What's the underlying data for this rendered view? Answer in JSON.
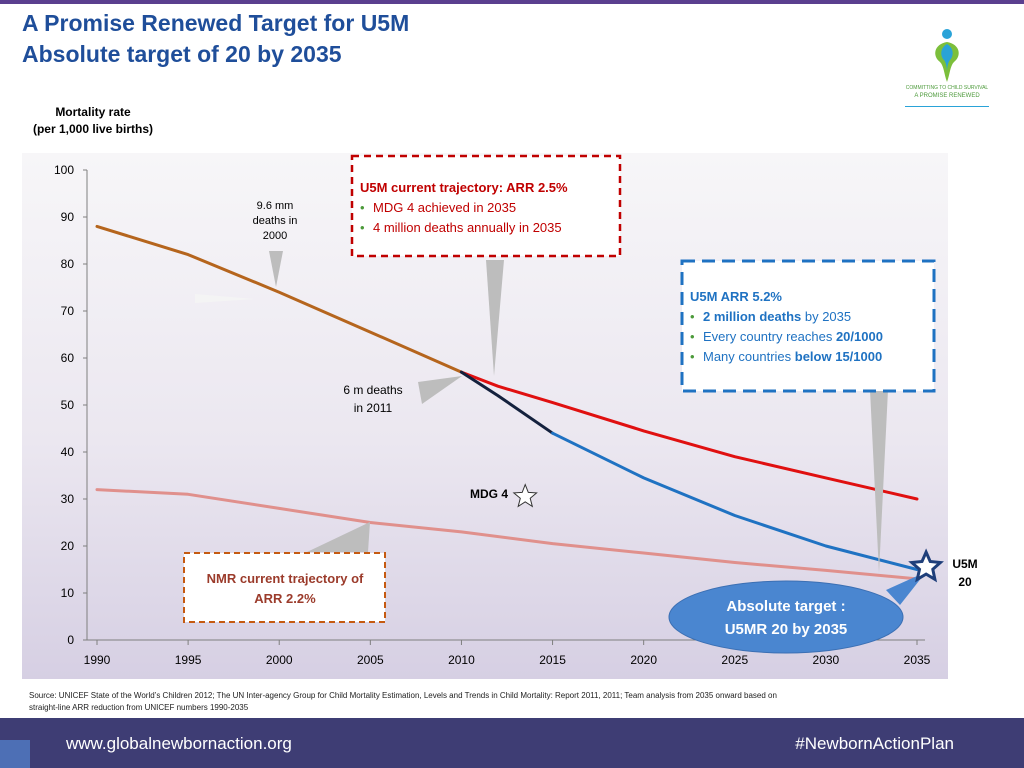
{
  "header": {
    "title_line1": "A Promise Renewed Target for U5M",
    "title_line2": "Absolute target of 20 by 2035"
  },
  "logo": {
    "line1": "COMMITTING TO CHILD SURVIVAL",
    "line2": "A PROMISE RENEWED"
  },
  "y_axis_label": {
    "line1": "Mortality rate",
    "line2": "(per 1,000 live births)"
  },
  "chart_data": {
    "type": "line",
    "ylim": [
      0,
      100
    ],
    "xlim": [
      1990,
      2035
    ],
    "yticks": [
      0,
      10,
      20,
      30,
      40,
      50,
      60,
      70,
      80,
      90,
      100
    ],
    "xticks": [
      1990,
      1995,
      2000,
      2005,
      2010,
      2015,
      2020,
      2025,
      2030,
      2035
    ],
    "grid": false,
    "series": [
      {
        "key": "historical",
        "color": "#b5651d",
        "width": 3,
        "points": [
          [
            1990,
            88
          ],
          [
            1995,
            82
          ],
          [
            2000,
            74
          ],
          [
            2005,
            65.5
          ],
          [
            2010,
            57
          ]
        ]
      },
      {
        "key": "u5m_current",
        "color": "#e01010",
        "width": 3,
        "points": [
          [
            2010,
            57
          ],
          [
            2012,
            54
          ],
          [
            2015,
            50.5
          ],
          [
            2020,
            44.5
          ],
          [
            2025,
            39
          ],
          [
            2030,
            34.5
          ],
          [
            2035,
            30
          ]
        ]
      },
      {
        "key": "bridge",
        "color": "#14213d",
        "width": 3,
        "points": [
          [
            2010,
            57
          ],
          [
            2012,
            52
          ],
          [
            2015,
            44
          ]
        ]
      },
      {
        "key": "u5m_arr52",
        "color": "#1f72c2",
        "width": 3,
        "points": [
          [
            2015,
            44
          ],
          [
            2020,
            34.5
          ],
          [
            2025,
            26.5
          ],
          [
            2030,
            20
          ],
          [
            2035,
            15
          ]
        ]
      },
      {
        "key": "nmr",
        "color": "#e0908c",
        "width": 3,
        "points": [
          [
            1990,
            32
          ],
          [
            1995,
            31
          ],
          [
            2000,
            28
          ],
          [
            2005,
            25
          ],
          [
            2010,
            23
          ],
          [
            2015,
            20.5
          ],
          [
            2020,
            18.5
          ],
          [
            2025,
            16.5
          ],
          [
            2030,
            14.8
          ],
          [
            2035,
            13
          ]
        ]
      }
    ],
    "markers": [
      {
        "key": "mdg4",
        "label": "MDG 4",
        "x": 2013.5,
        "y": 30.5,
        "shape": "star-outline"
      },
      {
        "key": "u5m20",
        "label_line1": "U5M",
        "label_line2": "20",
        "x": 2035.5,
        "y": 15.5,
        "shape": "star-target"
      }
    ],
    "annotations": {
      "deaths_2000": [
        "9.6 mm",
        "deaths in",
        "2000"
      ],
      "deaths_2011": [
        "6 m deaths",
        "in 2011"
      ],
      "mdg4_label": "MDG 4"
    },
    "callouts": {
      "u5m_current": {
        "title": "U5M current trajectory:  ARR 2.5%",
        "bullets": [
          "MDG 4 achieved in 2035",
          "4 million deaths annually in 2035"
        ],
        "color": "#c00000"
      },
      "u5m_arr52": {
        "title": "U5M ARR 5.2%",
        "b1_bold": "2 million deaths",
        "b1_rest": " by 2035",
        "b2_pre": "Every country reaches ",
        "b2_bold": "20/1000",
        "b3_pre": "Many countries ",
        "b3_bold": "below 15/1000",
        "color": "#1f72c2"
      },
      "nmr": {
        "line1": "NMR current trajectory of",
        "line2": "ARR 2.2%",
        "color": "#9b3b2b"
      },
      "absolute_target": {
        "line1": "Absolute target :",
        "line2": "U5MR 20 by 2035",
        "color": "#4a86d0"
      }
    }
  },
  "source_note": "Source: UNICEF State of the World’s Children 2012; The UN Inter-agency Group for Child Mortality Estimation, Levels and Trends in Child Mortality: Report 2011, 2011; Team analysis from 2035 onward based on straight-line ARR reduction from UNICEF numbers 1990-2035",
  "footer": {
    "url": "www.globalnewbornaction.org",
    "hashtag": "#NewbornActionPlan"
  }
}
